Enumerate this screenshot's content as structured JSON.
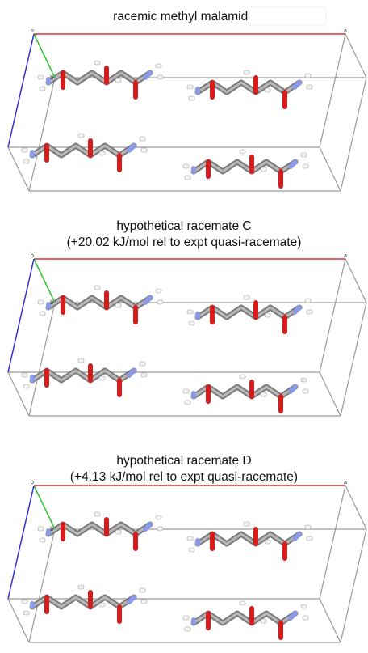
{
  "panels": [
    {
      "title_lines": [
        "racemic methyl malamide"
      ],
      "axis_labels": {
        "origin": "o",
        "a": "a",
        "b": "b"
      }
    },
    {
      "title_lines": [
        "hypothetical racemate C",
        "(+20.02 kJ/mol rel to expt quasi-racemate)"
      ],
      "axis_labels": {
        "origin": "o",
        "a": "a",
        "b": "b"
      }
    },
    {
      "title_lines": [
        "hypothetical racemate D",
        "(+4.13 kJ/mol rel to expt quasi-racemate)"
      ],
      "axis_labels": {
        "origin": "o",
        "a": "a",
        "b": "b"
      }
    }
  ]
}
